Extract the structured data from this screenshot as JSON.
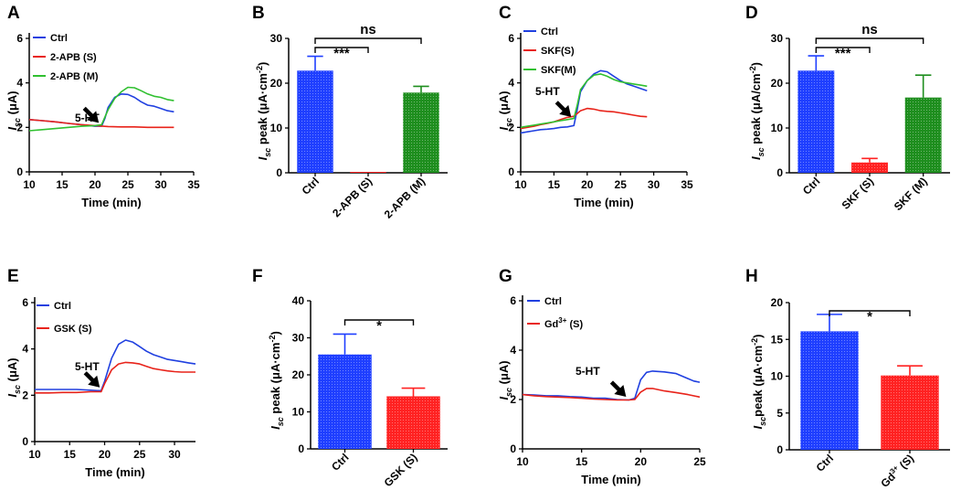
{
  "chart_data": [
    {
      "panel": "A",
      "type": "line",
      "xlabel": "Time (min)",
      "ylabel": "I",
      "ylabel_sub": "sc",
      "ylabel_unit": "(μA)",
      "xlim": [
        10,
        35
      ],
      "ylim": [
        0,
        6
      ],
      "xticks": [
        10,
        15,
        20,
        25,
        30,
        35
      ],
      "yticks": [
        0,
        2,
        4,
        6
      ],
      "annotation": "5-HT",
      "series": [
        {
          "name": "Ctrl",
          "color": "#2040e0",
          "x": [
            10,
            12,
            14,
            16,
            18,
            20,
            21,
            21.5,
            22,
            23,
            24,
            25,
            26,
            27,
            28,
            29,
            30,
            31,
            32
          ],
          "y": [
            2.35,
            2.3,
            2.25,
            2.18,
            2.12,
            2.05,
            2.05,
            2.4,
            2.9,
            3.35,
            3.5,
            3.48,
            3.35,
            3.15,
            3.0,
            2.95,
            2.85,
            2.75,
            2.7
          ]
        },
        {
          "name": "2-APB (S)",
          "color": "#e8231a",
          "x": [
            10,
            12,
            14,
            16,
            18,
            20,
            21,
            22,
            24,
            26,
            28,
            30,
            32
          ],
          "y": [
            2.35,
            2.3,
            2.25,
            2.18,
            2.12,
            2.08,
            2.06,
            2.04,
            2.02,
            2.02,
            2.0,
            2.0,
            2.0
          ]
        },
        {
          "name": "2-APB (M)",
          "color": "#30c030",
          "x": [
            10,
            12,
            14,
            16,
            18,
            20,
            21,
            22,
            23,
            24,
            25,
            26,
            27,
            28,
            29,
            30,
            31,
            32
          ],
          "y": [
            1.85,
            1.9,
            1.95,
            2.0,
            2.05,
            2.08,
            2.12,
            2.8,
            3.3,
            3.6,
            3.8,
            3.78,
            3.65,
            3.5,
            3.4,
            3.35,
            3.25,
            3.2
          ]
        }
      ]
    },
    {
      "panel": "B",
      "type": "bar",
      "ylabel": "I",
      "ylabel_sub": "sc",
      "ylabel_rest": " peak  (μA·cm",
      "ylabel_sup": "-2",
      "ylabel_end": ")",
      "ylim": [
        0,
        30
      ],
      "yticks": [
        0,
        10,
        20,
        30
      ],
      "categories": [
        "Ctrl",
        "2-APB (S)",
        "2-APB (M)"
      ],
      "values": [
        22.8,
        0.2,
        17.9
      ],
      "errors": [
        3.2,
        0,
        1.4
      ],
      "colors": [
        "#1f3fff",
        "#ff2222",
        "#1e8e1e"
      ],
      "significance": [
        {
          "from": 0,
          "to": 1,
          "label": "***"
        },
        {
          "from": 0,
          "to": 2,
          "label": "ns"
        }
      ]
    },
    {
      "panel": "C",
      "type": "line",
      "xlabel": "Time (min)",
      "ylabel": "I",
      "ylabel_sub": "sc",
      "ylabel_unit": "(μA)",
      "xlim": [
        10,
        35
      ],
      "ylim": [
        0,
        6
      ],
      "xticks": [
        10,
        15,
        20,
        25,
        30,
        35
      ],
      "yticks": [
        0,
        2,
        4,
        6
      ],
      "annotation": "5-HT",
      "series": [
        {
          "name": "Ctrl",
          "color": "#2040e0",
          "x": [
            10,
            11,
            12,
            13,
            14,
            15,
            16,
            17,
            18,
            18.5,
            19,
            20,
            21,
            22,
            23,
            24,
            25,
            26,
            27,
            28,
            29
          ],
          "y": [
            1.75,
            1.8,
            1.85,
            1.9,
            1.92,
            1.95,
            2.0,
            2.02,
            2.08,
            2.8,
            3.6,
            4.1,
            4.4,
            4.55,
            4.5,
            4.3,
            4.1,
            3.95,
            3.85,
            3.75,
            3.65
          ]
        },
        {
          "name": "SKF(S)",
          "color": "#e8231a",
          "x": [
            10,
            11,
            12,
            13,
            14,
            15,
            16,
            17,
            18,
            19,
            20,
            21,
            22,
            23,
            24,
            25,
            26,
            27,
            28,
            29
          ],
          "y": [
            1.95,
            2.0,
            2.05,
            2.12,
            2.18,
            2.25,
            2.35,
            2.45,
            2.5,
            2.75,
            2.85,
            2.82,
            2.75,
            2.72,
            2.7,
            2.65,
            2.6,
            2.55,
            2.5,
            2.48
          ]
        },
        {
          "name": "SKF(M)",
          "color": "#30c030",
          "x": [
            10,
            11,
            12,
            13,
            14,
            15,
            16,
            17,
            18,
            18.5,
            19,
            20,
            21,
            22,
            23,
            24,
            25,
            26,
            27,
            28,
            29
          ],
          "y": [
            2.0,
            2.05,
            2.1,
            2.15,
            2.2,
            2.25,
            2.3,
            2.35,
            2.4,
            3.0,
            3.7,
            4.1,
            4.35,
            4.4,
            4.3,
            4.15,
            4.05,
            4.0,
            3.95,
            3.9,
            3.85
          ]
        }
      ]
    },
    {
      "panel": "D",
      "type": "bar",
      "ylabel": "I",
      "ylabel_sub": "sc",
      "ylabel_rest": " peak  (μA/cm",
      "ylabel_sup": "-2",
      "ylabel_end": ")",
      "ylim": [
        0,
        30
      ],
      "yticks": [
        0,
        10,
        20,
        30
      ],
      "categories": [
        "Ctrl",
        "SKF (S)",
        "SKF (M)"
      ],
      "values": [
        22.8,
        2.3,
        16.8
      ],
      "errors": [
        3.3,
        0.9,
        5.0
      ],
      "colors": [
        "#1f3fff",
        "#ff2222",
        "#1e8e1e"
      ],
      "significance": [
        {
          "from": 0,
          "to": 1,
          "label": "***"
        },
        {
          "from": 0,
          "to": 2,
          "label": "ns"
        }
      ]
    },
    {
      "panel": "E",
      "type": "line",
      "xlabel": "Time (min)",
      "ylabel": "I",
      "ylabel_sub": "sc",
      "ylabel_unit": "(μA)",
      "xlim": [
        10,
        33
      ],
      "ylim": [
        0,
        6
      ],
      "xticks": [
        10,
        15,
        20,
        25,
        30
      ],
      "yticks": [
        0,
        2,
        4,
        6
      ],
      "annotation": "5-HT",
      "series": [
        {
          "name": "Ctrl",
          "color": "#2040e0",
          "x": [
            10,
            12,
            14,
            16,
            18,
            19,
            19.5,
            20,
            21,
            22,
            23,
            24,
            25,
            26,
            27,
            28,
            29,
            30,
            31,
            32,
            33
          ],
          "y": [
            2.25,
            2.25,
            2.25,
            2.25,
            2.22,
            2.2,
            2.2,
            2.6,
            3.6,
            4.2,
            4.38,
            4.3,
            4.1,
            3.9,
            3.75,
            3.65,
            3.55,
            3.5,
            3.45,
            3.4,
            3.35
          ]
        },
        {
          "name": "GSK (S)",
          "color": "#e8231a",
          "x": [
            10,
            12,
            14,
            16,
            18,
            19,
            19.5,
            20,
            21,
            22,
            23,
            24,
            25,
            26,
            27,
            28,
            29,
            30,
            31,
            32,
            33
          ],
          "y": [
            2.1,
            2.1,
            2.12,
            2.12,
            2.15,
            2.15,
            2.15,
            2.5,
            3.1,
            3.35,
            3.42,
            3.4,
            3.35,
            3.25,
            3.15,
            3.1,
            3.05,
            3.02,
            3.0,
            3.0,
            3.0
          ]
        }
      ]
    },
    {
      "panel": "F",
      "type": "bar",
      "ylabel": "I",
      "ylabel_sub": "sc",
      "ylabel_rest": " peak  (μA·cm",
      "ylabel_sup": "-2",
      "ylabel_end": ")",
      "ylim": [
        0,
        40
      ],
      "yticks": [
        0,
        10,
        20,
        30,
        40
      ],
      "categories": [
        "Ctrl",
        "GSK (S)"
      ],
      "values": [
        25.5,
        14.2
      ],
      "errors": [
        5.5,
        2.2
      ],
      "colors": [
        "#1f3fff",
        "#ff2222"
      ],
      "significance": [
        {
          "from": 0,
          "to": 1,
          "label": "*"
        }
      ]
    },
    {
      "panel": "G",
      "type": "line",
      "xlabel": "Time (min)",
      "ylabel": "I",
      "ylabel_sub": "sc",
      "ylabel_unit": "(μA)",
      "xlim": [
        10,
        25
      ],
      "ylim": [
        0,
        6
      ],
      "xticks": [
        10,
        15,
        20,
        25
      ],
      "yticks": [
        0,
        2,
        4,
        6
      ],
      "annotation": "5-HT",
      "series": [
        {
          "name": "Ctrl",
          "color": "#2040e0",
          "x": [
            10,
            11,
            12,
            13,
            14,
            15,
            16,
            17,
            18,
            19,
            19.5,
            20,
            20.5,
            21,
            22,
            23,
            24,
            24.5,
            25
          ],
          "y": [
            2.2,
            2.18,
            2.15,
            2.15,
            2.12,
            2.1,
            2.05,
            2.05,
            2.0,
            1.98,
            2.05,
            2.8,
            3.1,
            3.15,
            3.12,
            3.05,
            2.85,
            2.75,
            2.7
          ]
        },
        {
          "name": "Gd3+ (S)",
          "legend_base": "Gd",
          "legend_sup": "3+",
          "legend_rest": " (S)",
          "color": "#e8231a",
          "x": [
            10,
            11,
            12,
            13,
            14,
            15,
            16,
            17,
            18,
            19,
            19.5,
            20,
            20.5,
            21,
            22,
            23,
            24,
            25
          ],
          "y": [
            2.2,
            2.15,
            2.12,
            2.1,
            2.08,
            2.05,
            2.02,
            2.0,
            1.98,
            1.98,
            2.0,
            2.3,
            2.45,
            2.45,
            2.35,
            2.28,
            2.2,
            2.1
          ]
        }
      ]
    },
    {
      "panel": "H",
      "type": "bar",
      "ylabel": "I",
      "ylabel_sub": "sc",
      "ylabel_rest": "peak (μA·cm",
      "ylabel_sup": "-2",
      "ylabel_end": ")",
      "ylim": [
        0,
        20
      ],
      "yticks": [
        0,
        5,
        10,
        15,
        20
      ],
      "categories": [
        "Ctrl",
        "Gd3+ (S)"
      ],
      "category_parts": [
        null,
        {
          "base": "Gd",
          "sup": "3+",
          "rest": " (S)"
        }
      ],
      "values": [
        16.1,
        10.1
      ],
      "errors": [
        2.3,
        1.3
      ],
      "colors": [
        "#1f3fff",
        "#ff2222"
      ],
      "significance": [
        {
          "from": 0,
          "to": 1,
          "label": "*"
        }
      ]
    }
  ]
}
